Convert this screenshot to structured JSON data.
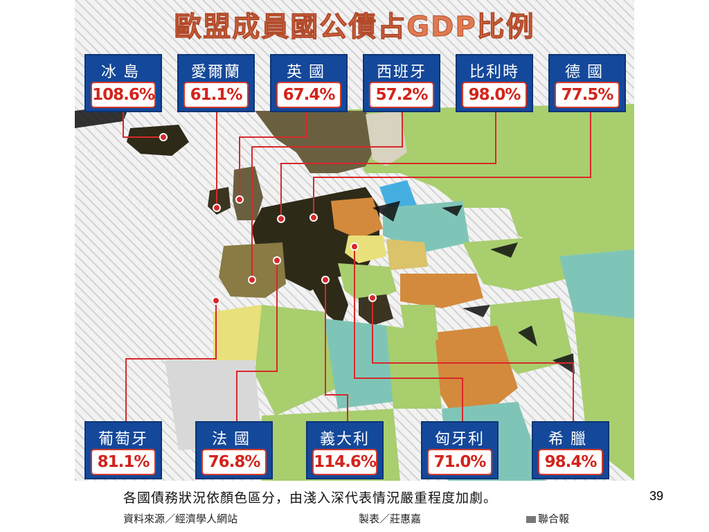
{
  "title": "歐盟成員國公債占GDP比例",
  "countries": [
    {
      "name": "冰島",
      "value": "108.6%"
    },
    {
      "name": "愛爾蘭",
      "value": "61.1%"
    },
    {
      "name": "英國",
      "value": "67.4%"
    },
    {
      "name": "西班牙",
      "value": "57.2%"
    },
    {
      "name": "比利時",
      "value": "98.0%"
    },
    {
      "name": "德國",
      "value": "77.5%"
    },
    {
      "name": "葡萄牙",
      "value": "81.1%"
    },
    {
      "name": "法國",
      "value": "76.8%"
    },
    {
      "name": "義大利",
      "value": "114.6%"
    },
    {
      "name": "匈牙利",
      "value": "71.0%"
    },
    {
      "name": "希臘",
      "value": "98.4%"
    }
  ],
  "legend_note": "各國債務狀況依顏色區分，由淺入深代表情況嚴重程度加劇。",
  "source": "資料來源／經濟學人網站",
  "maker": "製表／莊惠嘉",
  "publisher": "聯合報",
  "page_number": "39",
  "colors": {
    "title": "#e07a50",
    "callout_bg": "#14489a",
    "value_text": "#d2241c",
    "leader_line": "#d8282a",
    "severity_scale": [
      "#a8ce6e",
      "#7fc5b7",
      "#45aee0",
      "#e8e07a",
      "#dbc36a",
      "#d38a3c",
      "#8a7a44",
      "#5a5030",
      "#2e2a18"
    ]
  }
}
